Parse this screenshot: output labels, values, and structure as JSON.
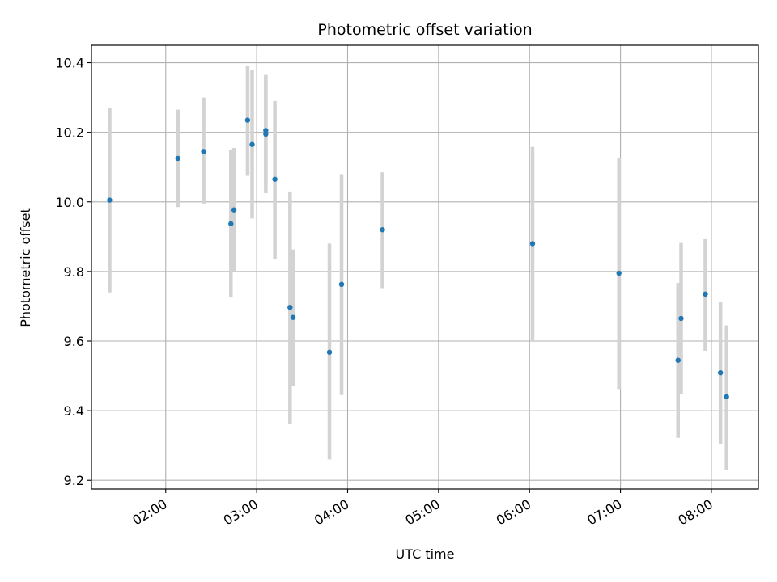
{
  "chart_data": {
    "type": "scatter",
    "title": "Photometric offset variation",
    "xlabel": "UTC time",
    "ylabel": "Photometric offset",
    "xlim": [
      "01:11",
      "08:31"
    ],
    "ylim": [
      9.175,
      10.45
    ],
    "x_ticks": [
      "02:00",
      "03:00",
      "04:00",
      "05:00",
      "06:00",
      "07:00",
      "08:00"
    ],
    "y_ticks": [
      9.2,
      9.4,
      9.6,
      9.8,
      10.0,
      10.2,
      10.4
    ],
    "y_tick_labels": [
      "9.2",
      "9.4",
      "9.6",
      "9.8",
      "10.0",
      "10.2",
      "10.4"
    ],
    "grid": true,
    "colors": {
      "point": "#1f77b4",
      "error_bar": "#d3d3d3",
      "grid": "#b0b0b0"
    },
    "points": [
      {
        "x": "01:23",
        "y": 10.005,
        "ylow": 9.74,
        "yhigh": 10.27
      },
      {
        "x": "02:08",
        "y": 10.125,
        "ylow": 9.985,
        "yhigh": 10.265
      },
      {
        "x": "02:25",
        "y": 10.145,
        "ylow": 9.995,
        "yhigh": 10.3
      },
      {
        "x": "02:43",
        "y": 9.937,
        "ylow": 9.725,
        "yhigh": 10.15
      },
      {
        "x": "02:45",
        "y": 9.977,
        "ylow": 9.8,
        "yhigh": 10.155
      },
      {
        "x": "02:54",
        "y": 10.235,
        "ylow": 10.075,
        "yhigh": 10.39
      },
      {
        "x": "02:57",
        "y": 10.165,
        "ylow": 9.952,
        "yhigh": 10.38
      },
      {
        "x": "03:06",
        "y": 10.205,
        "ylow": 10.05,
        "yhigh": 10.365
      },
      {
        "x": "03:06",
        "y": 10.195,
        "ylow": 10.025,
        "yhigh": 10.36
      },
      {
        "x": "03:12",
        "y": 10.065,
        "ylow": 9.835,
        "yhigh": 10.29
      },
      {
        "x": "03:22",
        "y": 9.697,
        "ylow": 9.362,
        "yhigh": 10.03
      },
      {
        "x": "03:24",
        "y": 9.668,
        "ylow": 9.472,
        "yhigh": 9.863
      },
      {
        "x": "03:48",
        "y": 9.568,
        "ylow": 9.26,
        "yhigh": 9.88
      },
      {
        "x": "03:56",
        "y": 9.763,
        "ylow": 9.445,
        "yhigh": 10.08
      },
      {
        "x": "04:23",
        "y": 9.92,
        "ylow": 9.752,
        "yhigh": 10.085
      },
      {
        "x": "06:02",
        "y": 9.88,
        "ylow": 9.6,
        "yhigh": 10.158
      },
      {
        "x": "06:59",
        "y": 9.795,
        "ylow": 9.462,
        "yhigh": 10.127
      },
      {
        "x": "07:38",
        "y": 9.545,
        "ylow": 9.322,
        "yhigh": 9.767
      },
      {
        "x": "07:40",
        "y": 9.665,
        "ylow": 9.448,
        "yhigh": 9.882
      },
      {
        "x": "07:56",
        "y": 9.735,
        "ylow": 9.572,
        "yhigh": 9.893
      },
      {
        "x": "08:06",
        "y": 9.509,
        "ylow": 9.305,
        "yhigh": 9.713
      },
      {
        "x": "08:10",
        "y": 9.44,
        "ylow": 9.23,
        "yhigh": 9.645
      }
    ]
  }
}
